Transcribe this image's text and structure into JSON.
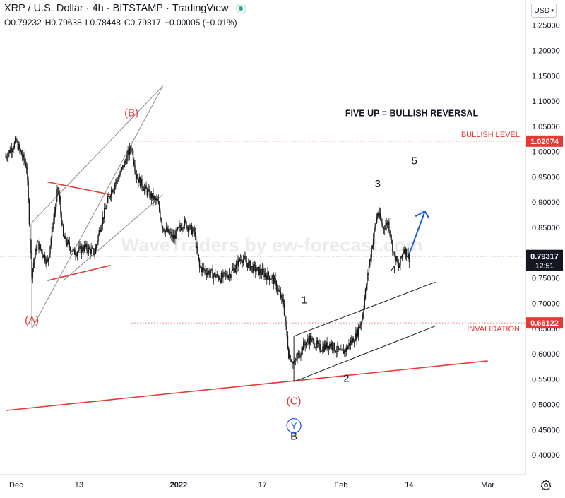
{
  "header": {
    "symbol": "XRP / U.S. Dollar",
    "interval": "4h",
    "exchange": "BITSTAMP",
    "source": "TradingView",
    "ohlc": [
      {
        "label": "O",
        "value": "0.79232"
      },
      {
        "label": "H",
        "value": "0.79638"
      },
      {
        "label": "L",
        "value": "0.78448"
      },
      {
        "label": "C",
        "value": "0.79317"
      }
    ],
    "change": "−0.00005 (−0.01%)"
  },
  "currency": "USD",
  "watermark": "WaveTraders by ew-forecast.com",
  "colors": {
    "accent_red": "#e53935",
    "dotted_red": "#e57373",
    "blue_arrow": "#1e5ae6",
    "price_tag": "#131722",
    "candles": "#1a1a1a",
    "live_dot": "#26a69a"
  },
  "icons": {
    "live-dot": "green-status-dot",
    "settings": "gear-icon",
    "wave-circle": "circled-letter"
  },
  "chart_data": {
    "type": "candlestick",
    "title": "",
    "xlabel": "",
    "ylabel": "",
    "y_ticks": [
      "1.25000",
      "1.20000",
      "1.15000",
      "1.10000",
      "1.05000",
      "1.00000",
      "0.95000",
      "0.90000",
      "0.85000",
      "0.80000",
      "0.75000",
      "0.70000",
      "0.65000",
      "0.60000",
      "0.55000",
      "0.50000",
      "0.45000",
      "0.40000"
    ],
    "x_ticks": [
      "Dec",
      "13",
      "2022",
      "17",
      "Feb",
      "14",
      "Mar"
    ],
    "ylim": [
      0.375,
      1.265
    ],
    "grid": false,
    "path_points": [
      {
        "date": "2021-11-29",
        "price": 0.99
      },
      {
        "date": "2021-12-01",
        "price": 1.02
      },
      {
        "date": "2021-12-03",
        "price": 0.97
      },
      {
        "date": "2021-12-04",
        "price": 0.76
      },
      {
        "date": "2021-12-05",
        "price": 0.82
      },
      {
        "date": "2021-12-07",
        "price": 0.78
      },
      {
        "date": "2021-12-09",
        "price": 0.93
      },
      {
        "date": "2021-12-10",
        "price": 0.83
      },
      {
        "date": "2021-12-12",
        "price": 0.8
      },
      {
        "date": "2021-12-14",
        "price": 0.81
      },
      {
        "date": "2021-12-16",
        "price": 0.8
      },
      {
        "date": "2021-12-17",
        "price": 0.85
      },
      {
        "date": "2021-12-19",
        "price": 0.92
      },
      {
        "date": "2021-12-21",
        "price": 0.96
      },
      {
        "date": "2021-12-23",
        "price": 1.01
      },
      {
        "date": "2021-12-24",
        "price": 0.95
      },
      {
        "date": "2021-12-26",
        "price": 0.92
      },
      {
        "date": "2021-12-28",
        "price": 0.9
      },
      {
        "date": "2021-12-29",
        "price": 0.85
      },
      {
        "date": "2021-12-31",
        "price": 0.83
      },
      {
        "date": "2022-01-02",
        "price": 0.86
      },
      {
        "date": "2022-01-04",
        "price": 0.84
      },
      {
        "date": "2022-01-05",
        "price": 0.77
      },
      {
        "date": "2022-01-07",
        "price": 0.76
      },
      {
        "date": "2022-01-09",
        "price": 0.75
      },
      {
        "date": "2022-01-11",
        "price": 0.76
      },
      {
        "date": "2022-01-13",
        "price": 0.79
      },
      {
        "date": "2022-01-15",
        "price": 0.77
      },
      {
        "date": "2022-01-17",
        "price": 0.76
      },
      {
        "date": "2022-01-19",
        "price": 0.75
      },
      {
        "date": "2022-01-21",
        "price": 0.7
      },
      {
        "date": "2022-01-22",
        "price": 0.6
      },
      {
        "date": "2022-01-23",
        "price": 0.58
      },
      {
        "date": "2022-01-25",
        "price": 0.62
      },
      {
        "date": "2022-01-26",
        "price": 0.63
      },
      {
        "date": "2022-01-28",
        "price": 0.61
      },
      {
        "date": "2022-01-30",
        "price": 0.62
      },
      {
        "date": "2022-02-01",
        "price": 0.6
      },
      {
        "date": "2022-02-02",
        "price": 0.61
      },
      {
        "date": "2022-02-04",
        "price": 0.64
      },
      {
        "date": "2022-02-05",
        "price": 0.67
      },
      {
        "date": "2022-02-06",
        "price": 0.75
      },
      {
        "date": "2022-02-07",
        "price": 0.82
      },
      {
        "date": "2022-02-08",
        "price": 0.88
      },
      {
        "date": "2022-02-09",
        "price": 0.85
      },
      {
        "date": "2022-02-10",
        "price": 0.86
      },
      {
        "date": "2022-02-11",
        "price": 0.8
      },
      {
        "date": "2022-02-12",
        "price": 0.77
      },
      {
        "date": "2022-02-13",
        "price": 0.81
      },
      {
        "date": "2022-02-14",
        "price": 0.79
      }
    ],
    "price_levels": [
      {
        "name": "BULLISH LEVEL",
        "value": 1.02074,
        "tag": "1.02074"
      },
      {
        "name": "INVALIDATION",
        "value": 0.66122,
        "tag": "0.66122"
      }
    ],
    "current_price": {
      "value": 0.79317,
      "tag": "0.79317",
      "countdown": "12:51"
    },
    "annotations": {
      "headline": "FIVE UP = BULLISH REVERSAL",
      "waves": [
        {
          "label": "(A)",
          "date": "2021-12-04",
          "price": 0.66,
          "color": "red"
        },
        {
          "label": "(B)",
          "date": "2021-12-23",
          "price": 1.07,
          "color": "red"
        },
        {
          "label": "(C)",
          "date": "2022-01-23",
          "price": 0.5,
          "color": "red"
        },
        {
          "label": "1",
          "date": "2022-01-25",
          "price": 0.7,
          "color": "black"
        },
        {
          "label": "2",
          "date": "2022-02-02",
          "price": 0.545,
          "color": "black"
        },
        {
          "label": "3",
          "date": "2022-02-08",
          "price": 0.93,
          "color": "black"
        },
        {
          "label": "4",
          "date": "2022-02-11",
          "price": 0.76,
          "color": "black"
        },
        {
          "label": "5",
          "date": "2022-02-15",
          "price": 0.975,
          "color": "black"
        },
        {
          "label": "B",
          "date": "2022-01-23",
          "price": 0.43,
          "color": "black"
        }
      ],
      "circled": {
        "label": "Y",
        "date": "2022-01-23",
        "price": 0.458
      }
    }
  }
}
